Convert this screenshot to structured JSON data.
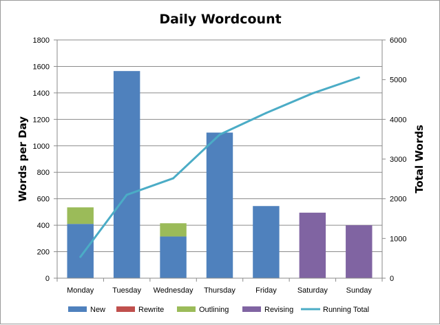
{
  "chart_data": {
    "type": "bar",
    "title": "Daily Wordcount",
    "xlabel": "",
    "ylabel": "Words per Day",
    "y2label": "Total Words",
    "categories": [
      "Monday",
      "Tuesday",
      "Wednesday",
      "Thursday",
      "Friday",
      "Saturday",
      "Sunday"
    ],
    "ylim": [
      0,
      1800
    ],
    "y2lim": [
      0,
      6000
    ],
    "yticks": [
      "0",
      "200",
      "400",
      "600",
      "800",
      "1000",
      "1200",
      "1400",
      "1600",
      "1800"
    ],
    "y2ticks": [
      "0",
      "1000",
      "2000",
      "3000",
      "4000",
      "5000",
      "6000"
    ],
    "stacked": true,
    "grid": true,
    "legend_position": "bottom",
    "series": [
      {
        "name": "New",
        "type": "bar",
        "axis": "left",
        "color": "#4f81bd",
        "values": [
          410,
          1565,
          315,
          1100,
          545,
          0,
          0
        ]
      },
      {
        "name": "Rewrite",
        "type": "bar",
        "axis": "left",
        "color": "#c0504d",
        "values": [
          0,
          0,
          0,
          0,
          0,
          0,
          0
        ]
      },
      {
        "name": "Outlining",
        "type": "bar",
        "axis": "left",
        "color": "#9bbb59",
        "values": [
          125,
          0,
          100,
          0,
          0,
          0,
          0
        ]
      },
      {
        "name": "Revising",
        "type": "bar",
        "axis": "left",
        "color": "#8064a2",
        "values": [
          0,
          0,
          0,
          0,
          0,
          495,
          400
        ]
      },
      {
        "name": "Running Total",
        "type": "line",
        "axis": "right",
        "color": "#4bacc6",
        "values": [
          535,
          2100,
          2515,
          3615,
          4160,
          4655,
          5055
        ]
      }
    ]
  }
}
